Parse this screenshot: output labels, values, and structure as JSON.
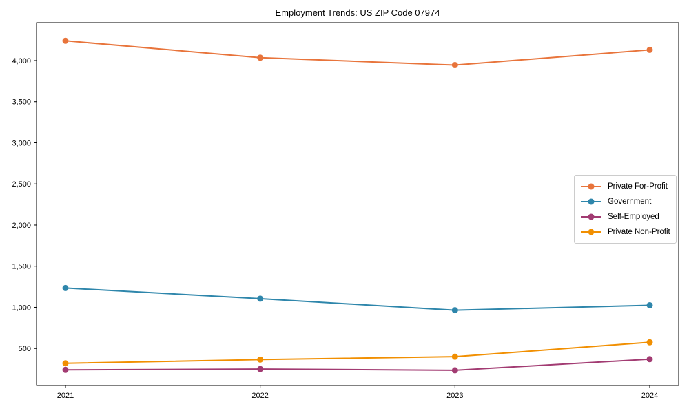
{
  "title": "Employment Trends: US ZIP Code 07974",
  "chart_data": {
    "type": "line",
    "title": "Employment Trends: US ZIP Code 07974",
    "xlabel": "",
    "ylabel": "",
    "categories": [
      "2021",
      "2022",
      "2023",
      "2024"
    ],
    "series": [
      {
        "name": "Private For-Profit",
        "color": "#E8743B",
        "values": [
          4240,
          4035,
          3945,
          4130
        ]
      },
      {
        "name": "Government",
        "color": "#2E86AB",
        "values": [
          1235,
          1105,
          965,
          1025
        ]
      },
      {
        "name": "Self-Employed",
        "color": "#A23B72",
        "values": [
          240,
          250,
          235,
          370
        ]
      },
      {
        "name": "Private Non-Profit",
        "color": "#F18F01",
        "values": [
          320,
          365,
          400,
          575
        ]
      }
    ],
    "ylim": [
      50,
      4460
    ],
    "yticks": [
      500,
      1000,
      1500,
      2000,
      2500,
      3000,
      3500,
      4000
    ],
    "ytick_labels": [
      "500",
      "1,000",
      "1,500",
      "2,000",
      "2,500",
      "3,000",
      "3,500",
      "4,000"
    ],
    "grid": false,
    "legend_position": "center-right",
    "marker": "circle"
  }
}
